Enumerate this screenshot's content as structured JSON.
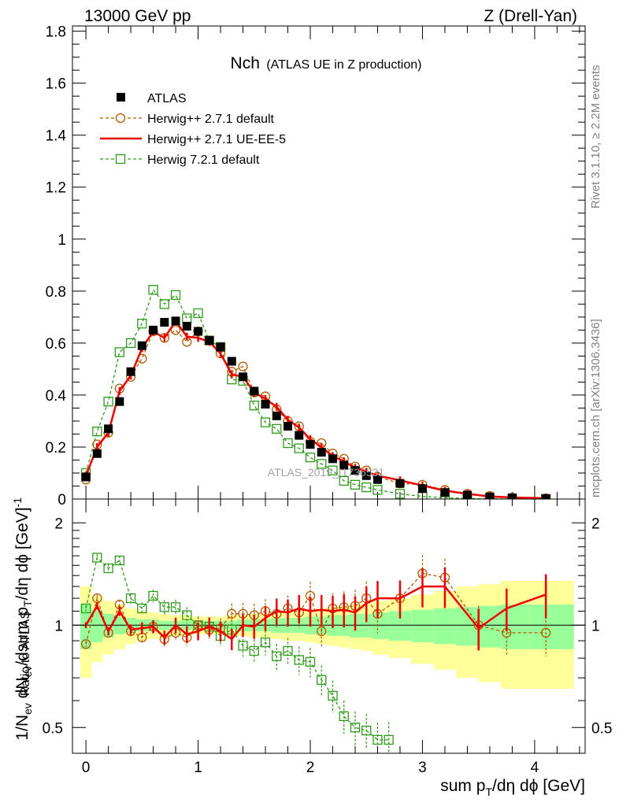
{
  "header": {
    "left": "13000 GeV pp",
    "right": "Z (Drell-Yan)"
  },
  "plot_title": {
    "main": "Nch",
    "detail": "(ATLAS UE in Z production)"
  },
  "side_notes": {
    "rivet": "Rivet 3.1.10, ≥ 2.2M events",
    "mcplots": "mcplots.cern.ch [arXiv:1306.3436]"
  },
  "watermark": "ATLAS_2019_I1736531",
  "axes": {
    "xlabel": "sum p_T/dη dϕ [GeV]",
    "ylabel_main": "1/N_ev dN_ev/dsum p_T/dη dϕ [GeV]^-1",
    "ylabel_ratio": "Ratio to ATLAS",
    "main_ticks": [
      "0",
      "0.2",
      "0.4",
      "0.6",
      "0.8",
      "1",
      "1.2",
      "1.4",
      "1.6",
      "1.8"
    ],
    "ratio_ticks": [
      "0.5",
      "1",
      "2"
    ],
    "x_ticks": [
      "0",
      "1",
      "2",
      "3",
      "4"
    ]
  },
  "colors": {
    "atlas": "#000000",
    "herwig_pp_default": "#b15a00",
    "herwig_pp_ueee5": "#ee0000",
    "herwig7_default": "#2e9a1a",
    "band_outer": "#ffff99",
    "band_inner": "#99ff99"
  },
  "chart_data": [
    {
      "type": "scatter",
      "panel": "main",
      "ylim": [
        0,
        1.82
      ],
      "xlim": [
        -0.12,
        4.45
      ],
      "legend_position": "top-left",
      "x": [
        0,
        0.1,
        0.2,
        0.3,
        0.4,
        0.5,
        0.6,
        0.7,
        0.8,
        0.9,
        1.0,
        1.1,
        1.2,
        1.3,
        1.4,
        1.5,
        1.6,
        1.7,
        1.8,
        1.9,
        2.0,
        2.1,
        2.2,
        2.3,
        2.4,
        2.5,
        2.6,
        2.8,
        3.0,
        3.2,
        3.4,
        3.6,
        3.8,
        4.1
      ],
      "series": [
        {
          "name": "ATLAS",
          "style": "square-marker",
          "values": [
            0.085,
            0.175,
            0.27,
            0.375,
            0.49,
            0.59,
            0.65,
            0.68,
            0.685,
            0.665,
            0.645,
            0.61,
            0.585,
            0.53,
            0.47,
            0.415,
            0.365,
            0.32,
            0.28,
            0.245,
            0.21,
            0.18,
            0.155,
            0.13,
            0.11,
            0.09,
            0.075,
            0.06,
            0.04,
            0.025,
            0.015,
            0.008,
            0.004,
            0.002
          ]
        },
        {
          "name": "Herwig++ 2.7.1 default",
          "style": "dashed-circle",
          "values": [
            0.075,
            0.21,
            0.255,
            0.425,
            0.47,
            0.54,
            0.645,
            0.62,
            0.65,
            0.605,
            0.645,
            0.61,
            0.56,
            0.49,
            0.51,
            0.41,
            0.395,
            0.345,
            0.3,
            0.28,
            0.22,
            0.215,
            0.175,
            0.155,
            0.125,
            0.11,
            0.085,
            0.06,
            0.055,
            0.035,
            0.02,
            0.012,
            0.006,
            0.003
          ]
        },
        {
          "name": "Herwig++ 2.7.1 UE-EE-5",
          "style": "solid-line",
          "values": [
            0.09,
            0.2,
            0.255,
            0.415,
            0.475,
            0.58,
            0.645,
            0.62,
            0.685,
            0.625,
            0.62,
            0.605,
            0.56,
            0.48,
            0.47,
            0.41,
            0.385,
            0.355,
            0.305,
            0.275,
            0.23,
            0.2,
            0.165,
            0.145,
            0.12,
            0.105,
            0.09,
            0.072,
            0.052,
            0.032,
            0.02,
            0.01,
            0.006,
            0.003
          ]
        },
        {
          "name": "Herwig 7.2.1 default",
          "style": "dashed-square",
          "values": [
            0.1,
            0.26,
            0.375,
            0.565,
            0.6,
            0.675,
            0.805,
            0.75,
            0.785,
            0.695,
            0.715,
            0.61,
            0.585,
            0.46,
            0.455,
            0.36,
            0.295,
            0.27,
            0.215,
            0.195,
            0.16,
            0.135,
            0.11,
            0.07,
            0.055,
            0.045,
            0.035,
            0.02,
            0.01,
            0.005,
            0.002,
            0.001,
            0.0005,
            0.0002
          ]
        }
      ]
    },
    {
      "type": "scatter",
      "panel": "ratio",
      "yscale": "log",
      "ylim": [
        0.42,
        2.35
      ],
      "xlim": [
        -0.12,
        4.45
      ],
      "reference_line": 1,
      "band_edges": [
        -0.05,
        0.05,
        0.15,
        0.25,
        0.35,
        0.45,
        0.55,
        0.65,
        0.75,
        0.85,
        0.95,
        1.05,
        1.15,
        1.25,
        1.35,
        1.45,
        1.55,
        1.65,
        1.75,
        1.85,
        1.95,
        2.05,
        2.15,
        2.25,
        2.35,
        2.45,
        2.55,
        2.7,
        2.9,
        3.1,
        3.3,
        3.5,
        3.7,
        3.95,
        4.35
      ],
      "band_outer_half_width": [
        0.3,
        0.22,
        0.18,
        0.15,
        0.12,
        0.1,
        0.09,
        0.08,
        0.07,
        0.07,
        0.06,
        0.06,
        0.06,
        0.07,
        0.07,
        0.08,
        0.08,
        0.09,
        0.1,
        0.1,
        0.11,
        0.12,
        0.13,
        0.14,
        0.15,
        0.16,
        0.18,
        0.2,
        0.23,
        0.26,
        0.3,
        0.32,
        0.35,
        0.35
      ],
      "band_inner_half_width": [
        0.15,
        0.11,
        0.08,
        0.06,
        0.05,
        0.04,
        0.04,
        0.03,
        0.03,
        0.03,
        0.03,
        0.03,
        0.03,
        0.03,
        0.04,
        0.04,
        0.04,
        0.05,
        0.05,
        0.05,
        0.06,
        0.06,
        0.07,
        0.07,
        0.08,
        0.08,
        0.09,
        0.1,
        0.11,
        0.12,
        0.13,
        0.14,
        0.15,
        0.15
      ],
      "series": [
        {
          "name": "Herwig++ 2.7.1 default",
          "style": "dashed-circle",
          "x": [
            0,
            0.1,
            0.2,
            0.3,
            0.4,
            0.5,
            0.6,
            0.7,
            0.8,
            0.9,
            1.0,
            1.1,
            1.2,
            1.3,
            1.4,
            1.5,
            1.6,
            1.7,
            1.8,
            1.9,
            2.0,
            2.1,
            2.2,
            2.3,
            2.4,
            2.5,
            2.6,
            2.8,
            3.0,
            3.2,
            3.5,
            3.75,
            4.1
          ],
          "values": [
            0.88,
            1.2,
            0.95,
            1.15,
            0.96,
            0.92,
            0.99,
            0.91,
            0.95,
            0.92,
            1.0,
            0.97,
            0.98,
            1.08,
            1.08,
            1.07,
            1.1,
            1.08,
            1.12,
            1.09,
            1.22,
            0.96,
            1.12,
            1.13,
            1.14,
            1.2,
            1.08,
            1.2,
            1.42,
            1.38,
            1.0,
            0.95,
            0.95
          ]
        },
        {
          "name": "Herwig++ 2.7.1 UE-EE-5",
          "style": "solid-line",
          "x": [
            0,
            0.1,
            0.2,
            0.3,
            0.4,
            0.5,
            0.6,
            0.7,
            0.8,
            0.9,
            1.0,
            1.1,
            1.2,
            1.3,
            1.4,
            1.5,
            1.6,
            1.7,
            1.8,
            1.9,
            2.0,
            2.1,
            2.2,
            2.3,
            2.4,
            2.5,
            2.6,
            2.8,
            3.0,
            3.2,
            3.5,
            3.75,
            4.1
          ],
          "values": [
            1.0,
            1.14,
            0.96,
            1.1,
            0.97,
            0.98,
            0.99,
            0.92,
            1.0,
            0.94,
            0.96,
            0.99,
            0.96,
            0.91,
            1.0,
            0.99,
            1.05,
            1.1,
            1.09,
            1.12,
            1.1,
            1.11,
            1.1,
            1.11,
            1.09,
            1.16,
            1.2,
            1.2,
            1.3,
            1.3,
            0.98,
            1.12,
            1.23
          ]
        },
        {
          "name": "Herwig 7.2.1 default",
          "style": "dashed-square",
          "x": [
            0,
            0.1,
            0.2,
            0.3,
            0.4,
            0.5,
            0.6,
            0.7,
            0.8,
            0.9,
            1.0,
            1.1,
            1.2,
            1.3,
            1.4,
            1.5,
            1.6,
            1.7,
            1.8,
            1.9,
            2.0,
            2.1,
            2.2,
            2.3,
            2.4,
            2.5,
            2.6,
            2.7
          ],
          "values": [
            1.12,
            1.58,
            1.47,
            1.55,
            1.2,
            1.12,
            1.22,
            1.13,
            1.13,
            1.07,
            1.0,
            0.99,
            0.93,
            0.97,
            0.87,
            0.84,
            0.89,
            0.81,
            0.84,
            0.79,
            0.78,
            0.69,
            0.62,
            0.54,
            0.5,
            0.49,
            0.46,
            0.46
          ]
        }
      ]
    }
  ]
}
